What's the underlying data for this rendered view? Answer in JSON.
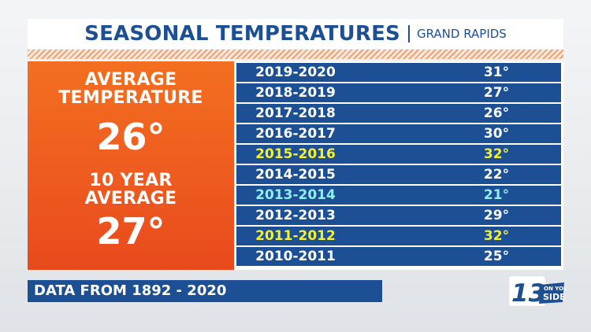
{
  "title": {
    "main": "SEASONAL TEMPERATURES",
    "sub": "GRAND RAPIDS"
  },
  "summary": {
    "average_label_line1": "AVERAGE",
    "average_label_line2": "TEMPERATURE",
    "average_value": "26°",
    "ten_year_label_line1": "10 YEAR",
    "ten_year_label_line2": "AVERAGE",
    "ten_year_value": "27°"
  },
  "table": {
    "rows": [
      {
        "season": "2019-2020",
        "temp": "31°",
        "highlight": "none"
      },
      {
        "season": "2018-2019",
        "temp": "27°",
        "highlight": "none"
      },
      {
        "season": "2017-2018",
        "temp": "26°",
        "highlight": "none"
      },
      {
        "season": "2016-2017",
        "temp": "30°",
        "highlight": "none"
      },
      {
        "season": "2015-2016",
        "temp": "32°",
        "highlight": "warm"
      },
      {
        "season": "2014-2015",
        "temp": "22°",
        "highlight": "none"
      },
      {
        "season": "2013-2014",
        "temp": "21°",
        "highlight": "cold"
      },
      {
        "season": "2012-2013",
        "temp": "29°",
        "highlight": "none"
      },
      {
        "season": "2011-2012",
        "temp": "32°",
        "highlight": "warm"
      },
      {
        "season": "2010-2011",
        "temp": "25°",
        "highlight": "none"
      }
    ]
  },
  "footer": {
    "source": "DATA FROM 1892 - 2020"
  },
  "logo": {
    "number": "13",
    "tagline_line1": "ON YOUR",
    "tagline_line2": "SIDE"
  },
  "colors": {
    "brand_blue": "#1c4f93",
    "panel_orange": "#f06420",
    "warm_highlight": "#f7f12c",
    "cold_highlight": "#8ff0f3"
  }
}
